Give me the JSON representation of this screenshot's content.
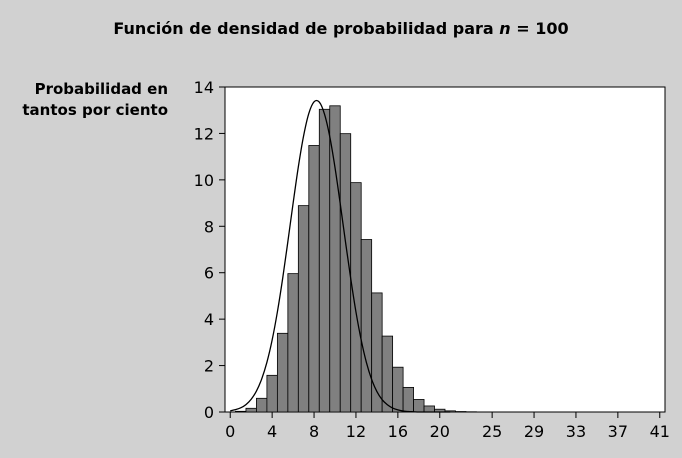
{
  "chart_data": {
    "type": "bar",
    "title": {
      "prefix": "Función de densidad de probabilidad para ",
      "variable": "n",
      "suffix": " = 100"
    },
    "ylabel": {
      "line1": "Probabilidad en",
      "line2": "tantos por ciento"
    },
    "xlabel": "",
    "xlim": [
      -0.5,
      41.5
    ],
    "ylim": [
      0,
      14
    ],
    "x_tick_labels": [
      0,
      4,
      8,
      12,
      16,
      20,
      25,
      29,
      33,
      37,
      41
    ],
    "y_tick_labels": [
      0,
      2,
      4,
      6,
      8,
      10,
      12,
      14
    ],
    "bar_width": 1,
    "grid": false,
    "legend": "none",
    "series": [
      {
        "kind": "bar",
        "x": [
          0,
          1,
          2,
          3,
          4,
          5,
          6,
          7,
          8,
          9,
          10,
          11,
          12,
          13,
          14,
          15,
          16,
          17,
          18,
          19,
          20,
          21,
          22,
          23,
          24,
          25,
          26,
          27,
          28,
          29,
          30,
          31,
          32,
          33,
          34,
          35,
          36,
          37,
          38,
          39,
          40,
          41
        ],
        "values": [
          0.0,
          0.03,
          0.16,
          0.59,
          1.58,
          3.39,
          5.96,
          8.89,
          11.48,
          13.04,
          13.19,
          11.99,
          9.88,
          7.43,
          5.13,
          3.27,
          1.93,
          1.06,
          0.54,
          0.26,
          0.12,
          0.05,
          0.02,
          0.01,
          0,
          0,
          0,
          0,
          0,
          0,
          0,
          0,
          0,
          0,
          0,
          0,
          0,
          0,
          0,
          0,
          0,
          0
        ]
      },
      {
        "kind": "line",
        "x": [
          0,
          0.5,
          1,
          1.5,
          2,
          2.5,
          3,
          3.5,
          4,
          4.5,
          5,
          5.5,
          6,
          6.5,
          7,
          7.5,
          8,
          8.5,
          9,
          9.5,
          10,
          10.5,
          11,
          11.5,
          12,
          12.5,
          13,
          13.5,
          14,
          14.5,
          15,
          15.5,
          16,
          16.5,
          17,
          17.5,
          18,
          18.5,
          19,
          19.5,
          20,
          20.5,
          21
        ],
        "values": [
          0.05,
          0.1,
          0.18,
          0.32,
          0.55,
          0.9,
          1.42,
          2.14,
          3.1,
          4.31,
          5.74,
          7.34,
          8.99,
          10.56,
          11.89,
          12.86,
          13.36,
          13.35,
          12.83,
          11.86,
          10.53,
          8.97,
          7.33,
          5.75,
          4.31,
          3.1,
          2.13,
          1.4,
          0.88,
          0.53,
          0.31,
          0.17,
          0.09,
          0.04,
          0.02,
          0.01,
          0.0,
          0.0,
          0.0,
          0.0,
          0.0,
          0.0,
          0.0
        ]
      }
    ],
    "colors": {
      "background": "#d1d1d1",
      "plot_area": "#ffffff",
      "bar_fill": "#808080",
      "bar_stroke": "#000000",
      "curve": "#000000"
    }
  }
}
